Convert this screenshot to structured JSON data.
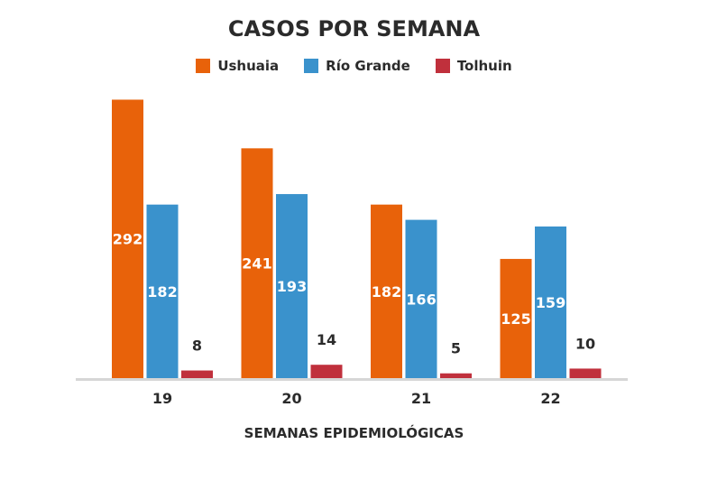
{
  "chart_data": {
    "type": "bar",
    "title": "CASOS POR SEMANA",
    "xlabel": "SEMANAS EPIDEMIOLÓGICAS",
    "ylabel": "",
    "categories": [
      "19",
      "20",
      "21",
      "22"
    ],
    "series": [
      {
        "name": "Ushuaia",
        "color": "#e8620a",
        "values": [
          292,
          241,
          182,
          125
        ]
      },
      {
        "name": "Río Grande",
        "color": "#3a92cc",
        "values": [
          182,
          193,
          166,
          159
        ]
      },
      {
        "name": "Tolhuin",
        "color": "#c0303c",
        "values": [
          8,
          14,
          5,
          10
        ]
      }
    ],
    "ylim": [
      0,
      300
    ],
    "grid": false,
    "legend": "top-center",
    "data_labels": true
  }
}
